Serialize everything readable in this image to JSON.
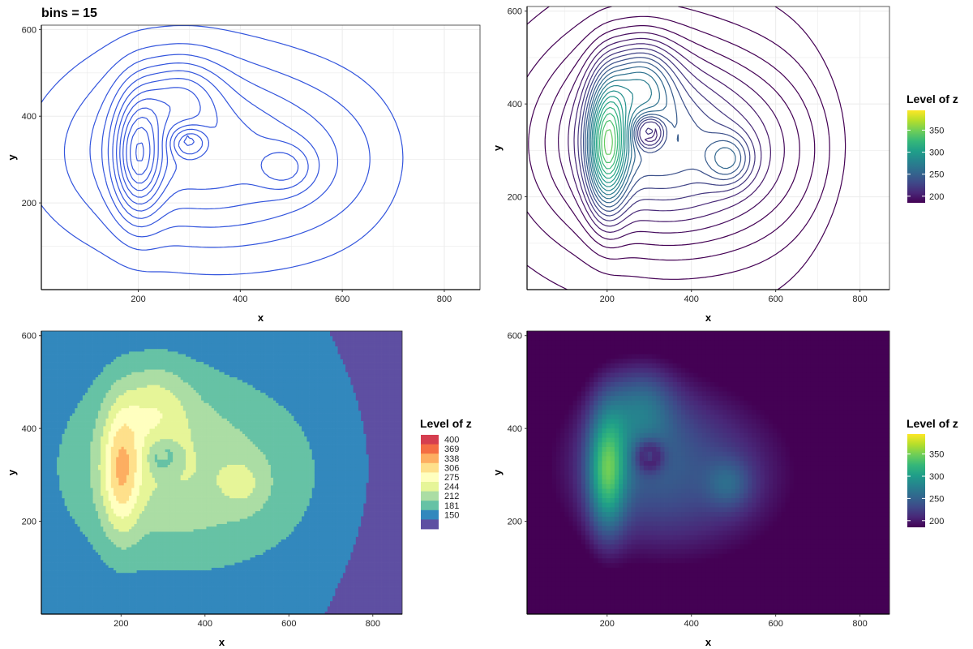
{
  "chart_data": [
    {
      "type": "contour",
      "title": "bins = 15",
      "xlabel": "x",
      "ylabel": "y",
      "xlim": [
        10,
        870
      ],
      "ylim": [
        0,
        610
      ],
      "xticks": [
        200,
        400,
        600,
        800
      ],
      "yticks": [
        200,
        400,
        600
      ],
      "bins": 15,
      "line_color": "#3355dd",
      "grid": true
    },
    {
      "type": "contour",
      "xlabel": "x",
      "ylabel": "y",
      "xlim": [
        10,
        870
      ],
      "ylim": [
        0,
        610
      ],
      "xticks": [
        200,
        400,
        600,
        800
      ],
      "yticks": [
        200,
        400,
        600
      ],
      "colored_by": "level",
      "legend": {
        "title": "Level of z",
        "type": "colorbar",
        "ticks": [
          200,
          250,
          300,
          350
        ],
        "range": [
          185,
          395
        ],
        "palette": "viridis",
        "position": "right"
      },
      "grid": true
    },
    {
      "type": "filled_contour",
      "xlabel": "x",
      "ylabel": "y",
      "xlim": [
        10,
        870
      ],
      "ylim": [
        0,
        610
      ],
      "xticks": [
        200,
        400,
        600,
        800
      ],
      "yticks": [
        200,
        400,
        600
      ],
      "legend": {
        "title": "Level of z",
        "type": "discrete",
        "levels": [
          "400",
          "369",
          "338",
          "306",
          "275",
          "244",
          "212",
          "181",
          "150"
        ],
        "colors": [
          "#d53e4f",
          "#f46d43",
          "#fdae61",
          "#fee08b",
          "#ffffbf",
          "#e6f598",
          "#abdda4",
          "#66c2a5",
          "#3288bd",
          "#5e4fa2"
        ],
        "position": "right"
      }
    },
    {
      "type": "heatmap",
      "xlabel": "x",
      "ylabel": "y",
      "xlim": [
        10,
        870
      ],
      "ylim": [
        0,
        610
      ],
      "xticks": [
        200,
        400,
        600,
        800
      ],
      "yticks": [
        200,
        400,
        600
      ],
      "legend": {
        "title": "Level of z",
        "type": "colorbar",
        "ticks": [
          200,
          250,
          300,
          350
        ],
        "range": [
          185,
          395
        ],
        "palette": "viridis",
        "position": "right"
      }
    }
  ]
}
